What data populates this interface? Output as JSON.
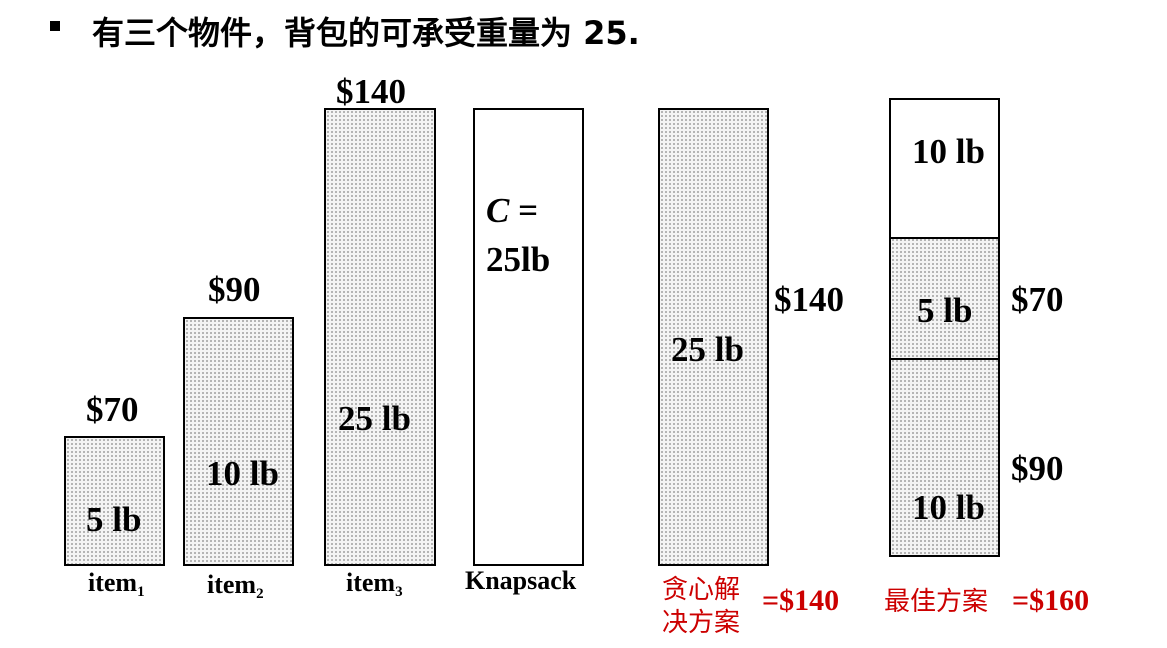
{
  "heading": "有三个物件，背包的可承受重量为 25.",
  "items": [
    {
      "price": "$70",
      "weight": "5 lb",
      "name": "item",
      "sub": "1"
    },
    {
      "price": "$90",
      "weight": "10 lb",
      "name": "item",
      "sub": "2"
    },
    {
      "price": "$140",
      "weight": "25 lb",
      "name": "item",
      "sub": "3"
    }
  ],
  "knapsack": {
    "capacity_var": "C",
    "capacity_eq": " =",
    "capacity_value": "25lb",
    "label": "Knapsack"
  },
  "greedy": {
    "weight": "25 lb",
    "price": "$140",
    "caption_line1": "贪心解",
    "caption_line2": "决方案",
    "total": "=$140"
  },
  "best": {
    "segments": [
      {
        "weight": "10 lb",
        "price": ""
      },
      {
        "weight": "5 lb",
        "price": "$70"
      },
      {
        "weight": "10 lb",
        "price": "$90"
      }
    ],
    "caption": "最佳方案",
    "total": "=$160"
  },
  "colors": {
    "text": "#000000",
    "caption_red": "#cc0000",
    "dotted_fill": "#f4f4f4"
  }
}
